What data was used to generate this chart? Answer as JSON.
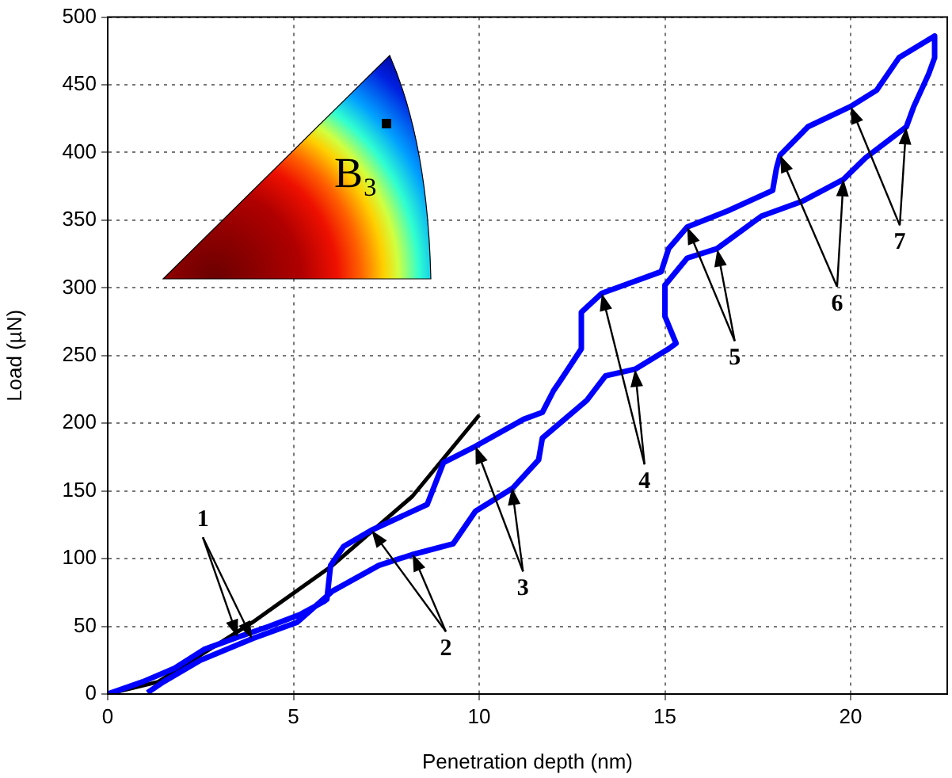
{
  "chart_data": {
    "type": "line",
    "xlabel": "Penetration depth (nm)",
    "ylabel": "Load (µN)",
    "xlim": [
      0,
      22.6
    ],
    "xticks": [
      0,
      5,
      10,
      15,
      20
    ],
    "ylim": [
      0,
      500
    ],
    "yticks": [
      0,
      50,
      100,
      150,
      200,
      250,
      300,
      350,
      400,
      450,
      500
    ],
    "grid": true,
    "legend": false,
    "marker": "none",
    "line_style": "solid",
    "series": [
      {
        "color": "#0000ff",
        "x": [
          0,
          0.94,
          1.8,
          2.6,
          3.5,
          4.35,
          5.2,
          5.8,
          5.9,
          6.0,
          6.35,
          7.1,
          8.6,
          9.04,
          9.9,
          11.2,
          11.7,
          12.0,
          12.2,
          12.75,
          12.75,
          13.3,
          14.9,
          15.1,
          15.6,
          16.7,
          17.9,
          18.0,
          18.1,
          18.85,
          20.0,
          20.7,
          21.3,
          22.26,
          22.26,
          22.1,
          21.7,
          21.5,
          20.4,
          19.8,
          18.7,
          17.6,
          16.4,
          15.6,
          15.0,
          15.0,
          15.3,
          15.1,
          14.2,
          13.4,
          12.9,
          11.7,
          11.6,
          10.9,
          9.9,
          9.3,
          8.2,
          7.3,
          6.05,
          5.1,
          3.9,
          2.5,
          1.5,
          1.07
        ],
        "values": [
          0,
          9,
          19,
          33,
          42,
          50,
          59,
          68,
          70,
          95,
          109,
          121,
          140,
          171,
          183,
          203,
          208,
          224,
          232,
          255,
          282,
          296,
          312,
          329,
          345,
          357,
          372,
          388,
          398,
          419,
          434,
          446,
          470,
          486,
          470,
          458,
          434,
          419,
          396,
          380,
          364,
          353,
          329,
          322,
          302,
          279,
          259,
          255,
          240,
          235,
          217,
          189,
          173,
          152,
          135,
          111,
          103,
          95,
          76,
          53,
          41,
          25,
          9,
          1
        ]
      },
      {
        "color": "#000000",
        "x": [
          0,
          1.36,
          3.9,
          6.05,
          8.2,
          10.0
        ],
        "values": [
          0,
          9,
          53,
          95,
          146,
          206
        ]
      }
    ],
    "annotations": [
      "B₃",
      {
        "text": "1",
        "x": 3.5,
        "y": 42
      },
      {
        "text": "2",
        "x": 7.1,
        "y": 121
      },
      {
        "text": "3",
        "x": 9.9,
        "y": 183
      },
      {
        "text": "4",
        "x": 13.3,
        "y": 296
      },
      {
        "text": "5",
        "x": 15.6,
        "y": 345
      },
      {
        "text": "6",
        "x": 18.1,
        "y": 398
      },
      {
        "text": "7",
        "x": 20.0,
        "y": 434
      }
    ]
  }
}
